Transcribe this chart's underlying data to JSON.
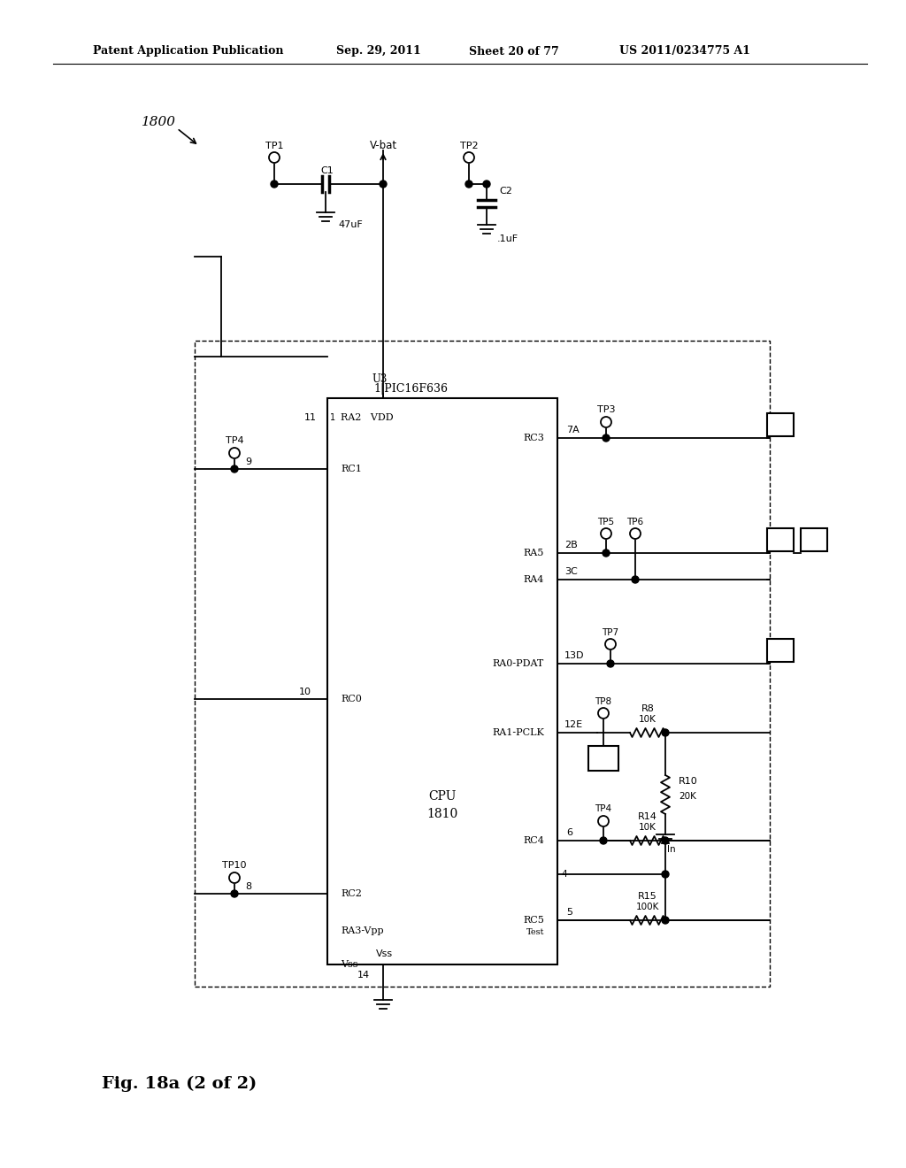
{
  "bg_color": "#ffffff",
  "header_text": "Patent Application Publication",
  "header_date": "Sep. 29, 2011",
  "header_sheet": "Sheet 20 of 77",
  "header_patent": "US 2011/0234775 A1",
  "figure_label": "Fig. 18a (2 of 2)",
  "line_color": "#000000"
}
